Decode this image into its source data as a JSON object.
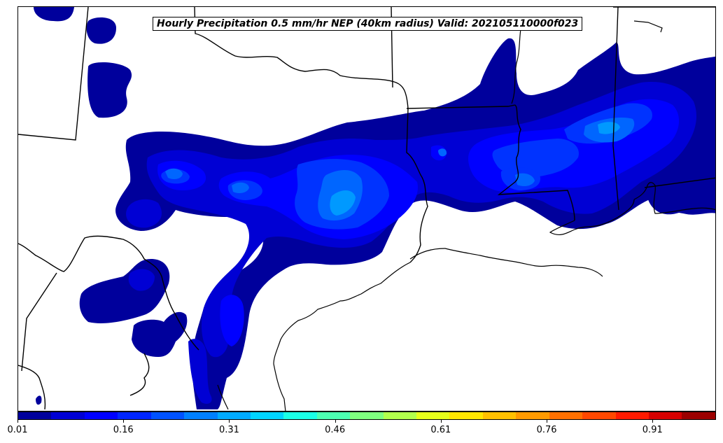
{
  "title": "Hourly Precipitation 0.5 mm/hr NEP (40km radius) Valid: 202105110000f023",
  "colorbar": {
    "min": 0.01,
    "max": 1.0,
    "tick_labels": [
      "0.01",
      "0.16",
      "0.31",
      "0.46",
      "0.61",
      "0.76",
      "0.91"
    ],
    "tick_values": [
      0.01,
      0.16,
      0.31,
      0.46,
      0.61,
      0.76,
      0.91
    ],
    "colors": [
      "#00009c",
      "#0000d4",
      "#0000ff",
      "#0025ff",
      "#0052ff",
      "#0080ff",
      "#00aaff",
      "#00d4ff",
      "#1affe6",
      "#4cffb2",
      "#7fff7f",
      "#b2ff4c",
      "#e6ff1a",
      "#ffe600",
      "#ffc000",
      "#ff9a00",
      "#ff7000",
      "#ff4800",
      "#ff1a00",
      "#d60000",
      "#9c0000"
    ]
  },
  "colors": {
    "level1": "#00009c",
    "level2": "#0000d4",
    "level3": "#0000ff",
    "level4": "#0033ff",
    "level5": "#0066ff",
    "level6": "#0099ff"
  }
}
